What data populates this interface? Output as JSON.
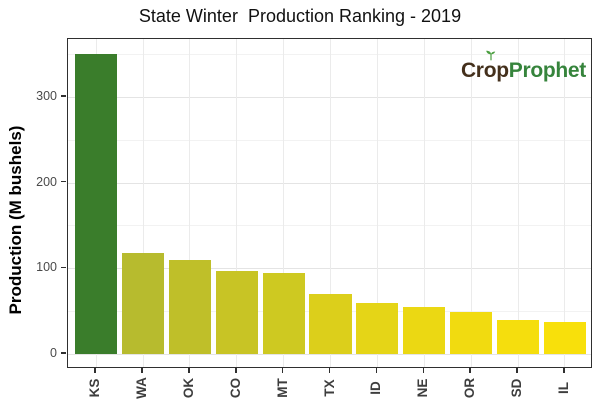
{
  "chart_data": {
    "type": "bar",
    "title": "State Winter  Production Ranking - 2019",
    "xlabel": "",
    "ylabel": "Production (M bushels)",
    "categories": [
      "KS",
      "WA",
      "OK",
      "CO",
      "MT",
      "TX",
      "ID",
      "NE",
      "OR",
      "SD",
      "IL"
    ],
    "values": [
      350,
      118,
      110,
      97,
      94,
      70,
      59,
      55,
      49,
      40,
      37
    ],
    "bar_colors": [
      "#3a7d2b",
      "#b7bb2e",
      "#bfbf29",
      "#c8c425",
      "#cec921",
      "#dccf1b",
      "#e5d517",
      "#ebd813",
      "#f1db10",
      "#f5de0d",
      "#f8e00b"
    ],
    "ylim": [
      -17.5,
      367.5
    ],
    "yticks": [
      0,
      100,
      200,
      300
    ],
    "yticks_minor": [
      50,
      150,
      250,
      350
    ],
    "grid": true,
    "legend": false,
    "bar_width_ratio": 0.9
  },
  "logo": {
    "c1": "Cr",
    "o": "o",
    "p": "p",
    "brand2": "Prophet",
    "crop_color": "#44301c",
    "prophet_color": "#36843c",
    "sprout_color": "#4a9e3f"
  },
  "colors": {
    "panel_border": "#2f2f2f",
    "grid_major": "#e4e4e4",
    "grid_minor": "#f2f2f2",
    "grid_vertical": "#ebebeb",
    "axis_text": "#4a4a4a",
    "x_axis_text": "#3d3d3d",
    "title_text": "#111111"
  }
}
